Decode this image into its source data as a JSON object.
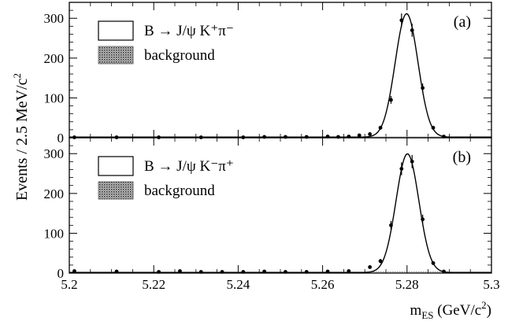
{
  "figure": {
    "ylabel": "Events / 2.5 MeV/c",
    "ylabel_sup": "2",
    "xlabel_main": "m",
    "xlabel_sub": "ES",
    "xlabel_unit": " (GeV/c",
    "xlabel_unit_sup": "2",
    "xlabel_unit_close": ")"
  },
  "chart_data": [
    {
      "type": "scatter",
      "panel_label": "(a)",
      "xlim": [
        5.2,
        5.3
      ],
      "ylim": [
        0,
        340
      ],
      "xticks": [
        "5.2",
        "5.22",
        "5.24",
        "5.26",
        "5.28",
        "5.3"
      ],
      "yticks": [
        "0",
        "100",
        "200",
        "300"
      ],
      "legend": [
        {
          "label": "B → J/ψ K⁺π⁻",
          "style": "open"
        },
        {
          "label": "background",
          "style": "hatched"
        }
      ],
      "fit_peak": {
        "mean": 5.2799,
        "sigma": 0.0027,
        "amplitude": 310
      },
      "points": [
        [
          5.2012,
          1
        ],
        [
          5.2112,
          1
        ],
        [
          5.2212,
          1
        ],
        [
          5.2312,
          1
        ],
        [
          5.2412,
          1
        ],
        [
          5.2462,
          2
        ],
        [
          5.2512,
          2
        ],
        [
          5.2562,
          2
        ],
        [
          5.2612,
          3
        ],
        [
          5.2637,
          2
        ],
        [
          5.2662,
          3
        ],
        [
          5.2687,
          6
        ],
        [
          5.2712,
          9
        ],
        [
          5.2737,
          25
        ],
        [
          5.2762,
          95
        ],
        [
          5.2787,
          295
        ],
        [
          5.2812,
          270
        ],
        [
          5.2837,
          125
        ],
        [
          5.2862,
          25
        ],
        [
          5.2887,
          3
        ]
      ]
    },
    {
      "type": "scatter",
      "panel_label": "(b)",
      "xlim": [
        5.2,
        5.3
      ],
      "ylim": [
        0,
        340
      ],
      "xticks": [
        "5.2",
        "5.22",
        "5.24",
        "5.26",
        "5.28",
        "5.3"
      ],
      "yticks": [
        "0",
        "100",
        "200",
        "300"
      ],
      "legend": [
        {
          "label": "B → J/ψ K⁻π⁺",
          "style": "open"
        },
        {
          "label": "background",
          "style": "hatched"
        }
      ],
      "fit_peak": {
        "mean": 5.2801,
        "sigma": 0.0027,
        "amplitude": 298
      },
      "points": [
        [
          5.2012,
          5
        ],
        [
          5.2112,
          4
        ],
        [
          5.2212,
          3
        ],
        [
          5.2262,
          5
        ],
        [
          5.2312,
          3
        ],
        [
          5.2362,
          3
        ],
        [
          5.2412,
          3
        ],
        [
          5.2462,
          4
        ],
        [
          5.2512,
          3
        ],
        [
          5.2562,
          3
        ],
        [
          5.2612,
          4
        ],
        [
          5.2662,
          5
        ],
        [
          5.2712,
          15
        ],
        [
          5.2737,
          30
        ],
        [
          5.2762,
          120
        ],
        [
          5.2787,
          262
        ],
        [
          5.2812,
          280
        ],
        [
          5.2837,
          135
        ],
        [
          5.2862,
          25
        ],
        [
          5.2887,
          4
        ]
      ]
    }
  ]
}
